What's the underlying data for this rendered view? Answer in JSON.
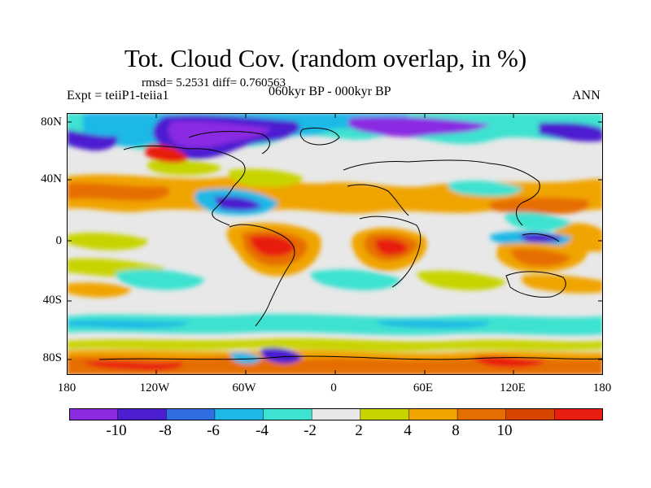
{
  "header": {
    "title": "Tot. Cloud Cov. (random overlap, in %)",
    "stats": "rmsd= 5.2531 diff= 0.760563",
    "experiment": "Expt = teiiP1-teiia1",
    "period": "060kyr BP - 000kyr BP",
    "season": "ANN"
  },
  "axes": {
    "x_ticks": [
      "180",
      "120W",
      "60W",
      "0",
      "60E",
      "120E",
      "180"
    ],
    "y_ticks": [
      "80N",
      "40N",
      "0",
      "40S",
      "80S"
    ]
  },
  "colorbar": {
    "labels": [
      "-10",
      "-8",
      "-6",
      "-4",
      "-2",
      "2",
      "4",
      "8",
      "10"
    ],
    "colors": [
      "#8a2be2",
      "#4b1fd0",
      "#2f6ee0",
      "#1fb8e6",
      "#3ee2d0",
      "#e8e8e8",
      "#c8d400",
      "#f0a400",
      "#e66e00",
      "#d84500",
      "#e81e10"
    ]
  }
}
